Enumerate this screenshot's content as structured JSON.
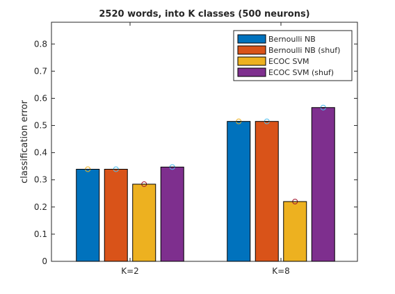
{
  "chart_data": {
    "type": "bar",
    "title": "2520 words, into K classes (500 neurons)",
    "xlabel": "",
    "ylabel": "classification error",
    "categories": [
      "K=2",
      "K=8"
    ],
    "ylim": [
      0,
      0.88
    ],
    "yticks": [
      0,
      0.1,
      0.2,
      0.3,
      0.4,
      0.5,
      0.6,
      0.7,
      0.8
    ],
    "grid": false,
    "legend_position": "top-right",
    "series": [
      {
        "name": "Bernoulli NB",
        "color": "#0072BD",
        "values": [
          0.339,
          0.515
        ],
        "marker_color": "#EDB120"
      },
      {
        "name": "Bernoulli NB (shuf)",
        "color": "#D95319",
        "values": [
          0.339,
          0.515
        ],
        "marker_color": "#4DBEEE"
      },
      {
        "name": "ECOC SVM",
        "color": "#EDB120",
        "values": [
          0.284,
          0.22
        ],
        "marker_color": "#A2142F"
      },
      {
        "name": "ECOC SVM (shuf)",
        "color": "#7E2F8E",
        "values": [
          0.347,
          0.566
        ],
        "marker_color": "#4DBEEE"
      }
    ]
  }
}
